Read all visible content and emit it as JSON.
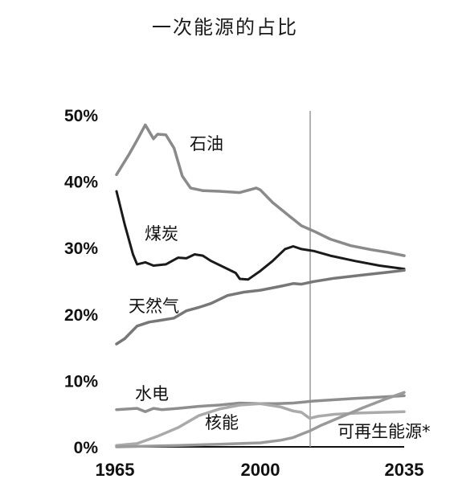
{
  "chart_data": {
    "type": "line",
    "title": "一次能源的占比",
    "xlabel": "",
    "ylabel": "",
    "xlim": [
      1965,
      2035
    ],
    "ylim": [
      0,
      50
    ],
    "x_ticks": [
      1965,
      2000,
      2035
    ],
    "y_ticks": [
      {
        "value": 0,
        "label": "0%"
      },
      {
        "value": 10,
        "label": "10%"
      },
      {
        "value": 20,
        "label": "20%"
      },
      {
        "value": 30,
        "label": "30%"
      },
      {
        "value": 40,
        "label": "40%"
      },
      {
        "value": 50,
        "label": "50%"
      }
    ],
    "projection_start_year": 2012,
    "grid": false,
    "series": [
      {
        "name": "石油",
        "color": "#8a8a8a",
        "points": [
          [
            1965,
            41.0
          ],
          [
            1968,
            44.0
          ],
          [
            1970,
            46.2
          ],
          [
            1972,
            48.5
          ],
          [
            1974,
            46.4
          ],
          [
            1975,
            47.1
          ],
          [
            1977,
            47.0
          ],
          [
            1979,
            45.0
          ],
          [
            1981,
            40.8
          ],
          [
            1983,
            39.0
          ],
          [
            1986,
            38.6
          ],
          [
            1990,
            38.5
          ],
          [
            1995,
            38.3
          ],
          [
            1999,
            39.0
          ],
          [
            2000,
            38.7
          ],
          [
            2003,
            36.8
          ],
          [
            2007,
            34.8
          ],
          [
            2010,
            33.3
          ],
          [
            2013,
            32.5
          ],
          [
            2017,
            31.3
          ],
          [
            2022,
            30.3
          ],
          [
            2027,
            29.7
          ],
          [
            2031,
            29.3
          ],
          [
            2035,
            28.8
          ]
        ]
      },
      {
        "name": "煤炭",
        "color": "#1a1a1a",
        "points": [
          [
            1965,
            38.5
          ],
          [
            1967,
            33.5
          ],
          [
            1969,
            29.0
          ],
          [
            1970,
            27.5
          ],
          [
            1972,
            27.8
          ],
          [
            1974,
            27.3
          ],
          [
            1977,
            27.5
          ],
          [
            1980,
            28.5
          ],
          [
            1982,
            28.4
          ],
          [
            1984,
            29.0
          ],
          [
            1986,
            28.8
          ],
          [
            1988,
            28.0
          ],
          [
            1992,
            26.8
          ],
          [
            1994,
            26.2
          ],
          [
            1995,
            25.3
          ],
          [
            1997,
            25.2
          ],
          [
            2000,
            26.5
          ],
          [
            2003,
            28.0
          ],
          [
            2006,
            29.8
          ],
          [
            2008,
            30.2
          ],
          [
            2010,
            29.8
          ],
          [
            2013,
            29.5
          ],
          [
            2017,
            28.8
          ],
          [
            2023,
            28.0
          ],
          [
            2029,
            27.3
          ],
          [
            2035,
            26.8
          ]
        ]
      },
      {
        "name": "天然气",
        "color": "#777777",
        "points": [
          [
            1965,
            15.5
          ],
          [
            1967,
            16.3
          ],
          [
            1970,
            18.2
          ],
          [
            1973,
            18.8
          ],
          [
            1975,
            19.0
          ],
          [
            1979,
            19.4
          ],
          [
            1982,
            20.5
          ],
          [
            1985,
            21.0
          ],
          [
            1988,
            21.6
          ],
          [
            1992,
            22.8
          ],
          [
            1996,
            23.3
          ],
          [
            2000,
            23.6
          ],
          [
            2005,
            24.2
          ],
          [
            2008,
            24.6
          ],
          [
            2010,
            24.5
          ],
          [
            2013,
            24.9
          ],
          [
            2018,
            25.4
          ],
          [
            2025,
            25.9
          ],
          [
            2031,
            26.3
          ],
          [
            2035,
            26.6
          ]
        ]
      },
      {
        "name": "水电",
        "color": "#8e8e8e",
        "points": [
          [
            1965,
            5.6
          ],
          [
            1970,
            5.8
          ],
          [
            1972,
            5.3
          ],
          [
            1974,
            5.8
          ],
          [
            1976,
            5.6
          ],
          [
            1980,
            5.8
          ],
          [
            1985,
            6.1
          ],
          [
            1990,
            6.3
          ],
          [
            1995,
            6.6
          ],
          [
            2000,
            6.5
          ],
          [
            2004,
            6.5
          ],
          [
            2008,
            6.6
          ],
          [
            2013,
            6.9
          ],
          [
            2018,
            7.1
          ],
          [
            2023,
            7.3
          ],
          [
            2029,
            7.5
          ],
          [
            2035,
            7.7
          ]
        ]
      },
      {
        "name": "核能",
        "color": "#aaaaaa",
        "points": [
          [
            1965,
            0.2
          ],
          [
            1970,
            0.5
          ],
          [
            1975,
            1.6
          ],
          [
            1980,
            2.9
          ],
          [
            1985,
            4.7
          ],
          [
            1990,
            5.7
          ],
          [
            1995,
            6.3
          ],
          [
            2000,
            6.5
          ],
          [
            2005,
            6.0
          ],
          [
            2008,
            5.4
          ],
          [
            2010,
            5.2
          ],
          [
            2012,
            4.3
          ],
          [
            2014,
            4.6
          ],
          [
            2018,
            4.9
          ],
          [
            2024,
            5.1
          ],
          [
            2030,
            5.2
          ],
          [
            2035,
            5.3
          ]
        ]
      },
      {
        "name": "可再生能源*",
        "color": "#9a9a9a",
        "points": [
          [
            1965,
            0.0
          ],
          [
            1980,
            0.2
          ],
          [
            1990,
            0.4
          ],
          [
            1995,
            0.5
          ],
          [
            2000,
            0.6
          ],
          [
            2005,
            1.0
          ],
          [
            2008,
            1.4
          ],
          [
            2010,
            1.9
          ],
          [
            2012,
            2.4
          ],
          [
            2015,
            3.3
          ],
          [
            2020,
            4.6
          ],
          [
            2025,
            5.9
          ],
          [
            2030,
            7.1
          ],
          [
            2035,
            8.2
          ]
        ]
      }
    ],
    "labels": {
      "oil": "石油",
      "coal": "煤炭",
      "gas": "天然气",
      "hydro": "水电",
      "nuclear": "核能",
      "renewables": "可再生能源*"
    }
  }
}
